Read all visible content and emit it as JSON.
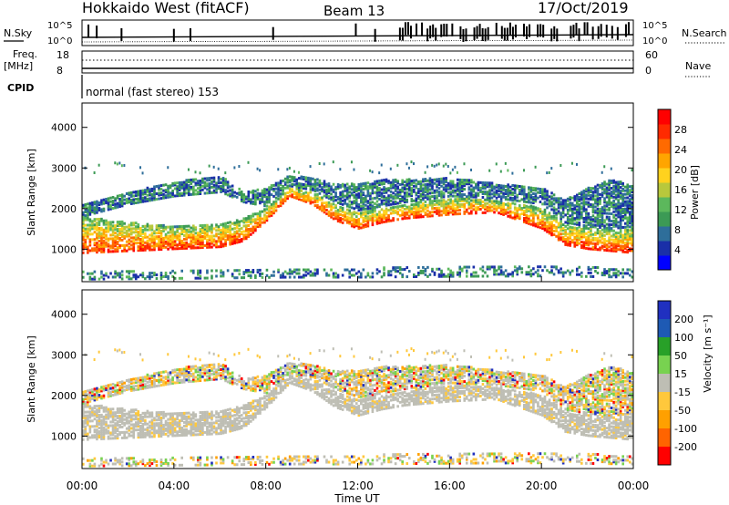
{
  "header": {
    "station": "Hokkaido West (fitACF)",
    "beam": "Beam 13",
    "date": "17/Oct/2019"
  },
  "aux": {
    "nsky_label": "N.Sky",
    "nsky_ticks": [
      "10^5",
      "10^0"
    ],
    "nsearch_ticks": [
      "10^5",
      "10^0"
    ],
    "nsearch_label": "N.Search",
    "freq_label": "Freq.",
    "freq_unit": "[MHz]",
    "freq_ticks": [
      "18",
      "8"
    ],
    "nave_ticks": [
      "60",
      "0"
    ],
    "nave_label": "Nave",
    "cpid_label": "CPID",
    "mode_text": "normal (fast stereo) 153"
  },
  "chart_data": [
    {
      "type": "heatmap",
      "name": "power",
      "ylabel": "Slant Range [km]",
      "yticks": [
        "1000",
        "2000",
        "3000",
        "4000"
      ],
      "yticks_values": [
        1000,
        2000,
        3000,
        4000
      ],
      "ylim": [
        200,
        4600
      ],
      "colorbar": {
        "label": "Power [dB]",
        "ticks": [
          "4",
          "8",
          "12",
          "16",
          "20",
          "24",
          "28"
        ],
        "range": [
          0,
          32
        ],
        "colors": [
          "#0000ff",
          "#1a2fa8",
          "#2e6e9a",
          "#3c9a55",
          "#5cb85c",
          "#b8c83c",
          "#ffd21e",
          "#ffa500",
          "#ff6a00",
          "#ff2a00",
          "#ff0000"
        ]
      },
      "bands": [
        {
          "times": [
            0,
            2,
            4,
            6,
            7,
            8,
            9,
            10,
            11,
            12,
            13,
            14,
            16,
            18,
            20,
            21,
            22,
            23,
            24
          ],
          "lower": [
            900,
            950,
            1000,
            1050,
            1200,
            1700,
            2300,
            2100,
            1700,
            1500,
            1650,
            1750,
            1850,
            1900,
            1500,
            1100,
            1000,
            950,
            900
          ],
          "upper": [
            1800,
            1650,
            1550,
            1600,
            1750,
            2000,
            2500,
            2400,
            2100,
            1900,
            2000,
            2100,
            2250,
            2200,
            2000,
            1600,
            1500,
            1450,
            1500
          ],
          "level": 20
        },
        {
          "times": [
            0,
            2,
            4,
            6,
            7,
            8,
            9,
            10,
            11,
            12,
            13,
            14,
            16,
            18,
            20,
            21,
            22,
            23,
            24
          ],
          "lower": [
            1800,
            2100,
            2300,
            2400,
            2150,
            2050,
            2550,
            2450,
            2150,
            1950,
            2050,
            2150,
            2300,
            2250,
            2100,
            1650,
            1550,
            1500,
            1550
          ],
          "upper": [
            2100,
            2400,
            2650,
            2800,
            2400,
            2500,
            2800,
            2750,
            2600,
            2600,
            2700,
            2700,
            2750,
            2600,
            2500,
            2200,
            2500,
            2700,
            2600
          ],
          "level": 8
        },
        {
          "times": [
            0,
            6,
            9,
            12,
            16,
            20,
            24
          ],
          "lower": [
            250,
            280,
            300,
            300,
            320,
            330,
            300
          ],
          "upper": [
            450,
            480,
            500,
            520,
            560,
            600,
            500
          ],
          "level": 8
        }
      ]
    },
    {
      "type": "heatmap",
      "name": "velocity",
      "ylabel": "Slant Range [km]",
      "yticks": [
        "1000",
        "2000",
        "3000",
        "4000"
      ],
      "yticks_values": [
        1000,
        2000,
        3000,
        4000
      ],
      "ylim": [
        200,
        4600
      ],
      "xlabel": "Time UT",
      "xticks": [
        "00:00",
        "04:00",
        "08:00",
        "12:00",
        "16:00",
        "20:00",
        "00:00"
      ],
      "xticks_values": [
        0,
        4,
        8,
        12,
        16,
        20,
        24
      ],
      "xlim": [
        0,
        24
      ],
      "colorbar": {
        "label": "Velocity [m s⁻¹]",
        "ticks": [
          "200",
          "100",
          "50",
          "15",
          "-15",
          "-50",
          "-100",
          "-200"
        ],
        "colors": [
          "#2030c0",
          "#1e5ab4",
          "#28a028",
          "#78d250",
          "#bebeb4",
          "#ffc83c",
          "#ffa000",
          "#ff6400",
          "#ff0000"
        ]
      },
      "dominant_level": "-15 to 15 (grey)"
    }
  ],
  "colors": {
    "ground_scatter": "#bebeb4",
    "frame": "#000000"
  }
}
